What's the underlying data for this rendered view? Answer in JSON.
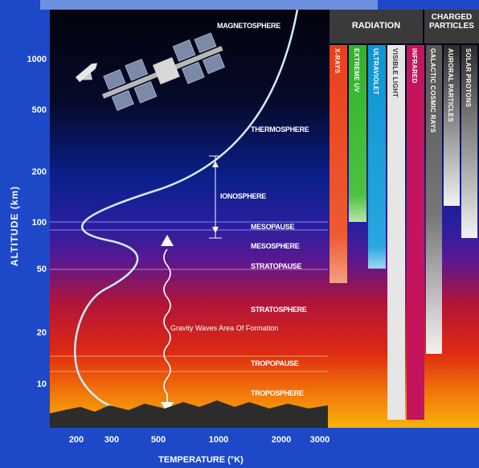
{
  "y_axis": {
    "title": "ALTITUDE (km)",
    "ticks": [
      "1000",
      "500",
      "200",
      "100",
      "50",
      "20",
      "10"
    ]
  },
  "x_axis": {
    "title": "TEMPERATURE (°K)",
    "ticks": [
      "200",
      "300",
      "500",
      "1000",
      "2000",
      "3000"
    ]
  },
  "layers": {
    "magnetosphere": "MAGNETOSPHERE",
    "thermosphere": "THERMOSPHERE",
    "ionosphere": "IONOSPHERE",
    "mesopause": "MESOPAUSE",
    "mesosphere": "MESOSPHERE",
    "stratopause": "STRATOPAUSE",
    "stratosphere": "STRATOSPHERE",
    "tropopause": "TROPOPAUSE",
    "troposphere": "TROPOSPHERE"
  },
  "gravity_waves": "Gravity Waves Area Of Formation",
  "radiation": {
    "header": "RADIATION",
    "bars": [
      {
        "label": "X-RAYS",
        "color": "#e8401c"
      },
      {
        "label": "EXTREME UV",
        "color": "#2fb32a"
      },
      {
        "label": "ULTRAVIOLET",
        "color": "#0f95d4"
      },
      {
        "label": "VISIBLE LIGHT",
        "color": "#e8e8e8"
      },
      {
        "label": "INFRARED",
        "color": "#c4145e"
      }
    ]
  },
  "charged_particles": {
    "header": "CHARGED PARTICLES",
    "bars": [
      {
        "label": "GALACTIC COSMIC RAYS",
        "color": "#555555"
      },
      {
        "label": "AURORAL PARTICLES",
        "color": "#eeeeee"
      },
      {
        "label": "SOLAR PROTONS",
        "color": "#eeeeee"
      }
    ]
  }
}
